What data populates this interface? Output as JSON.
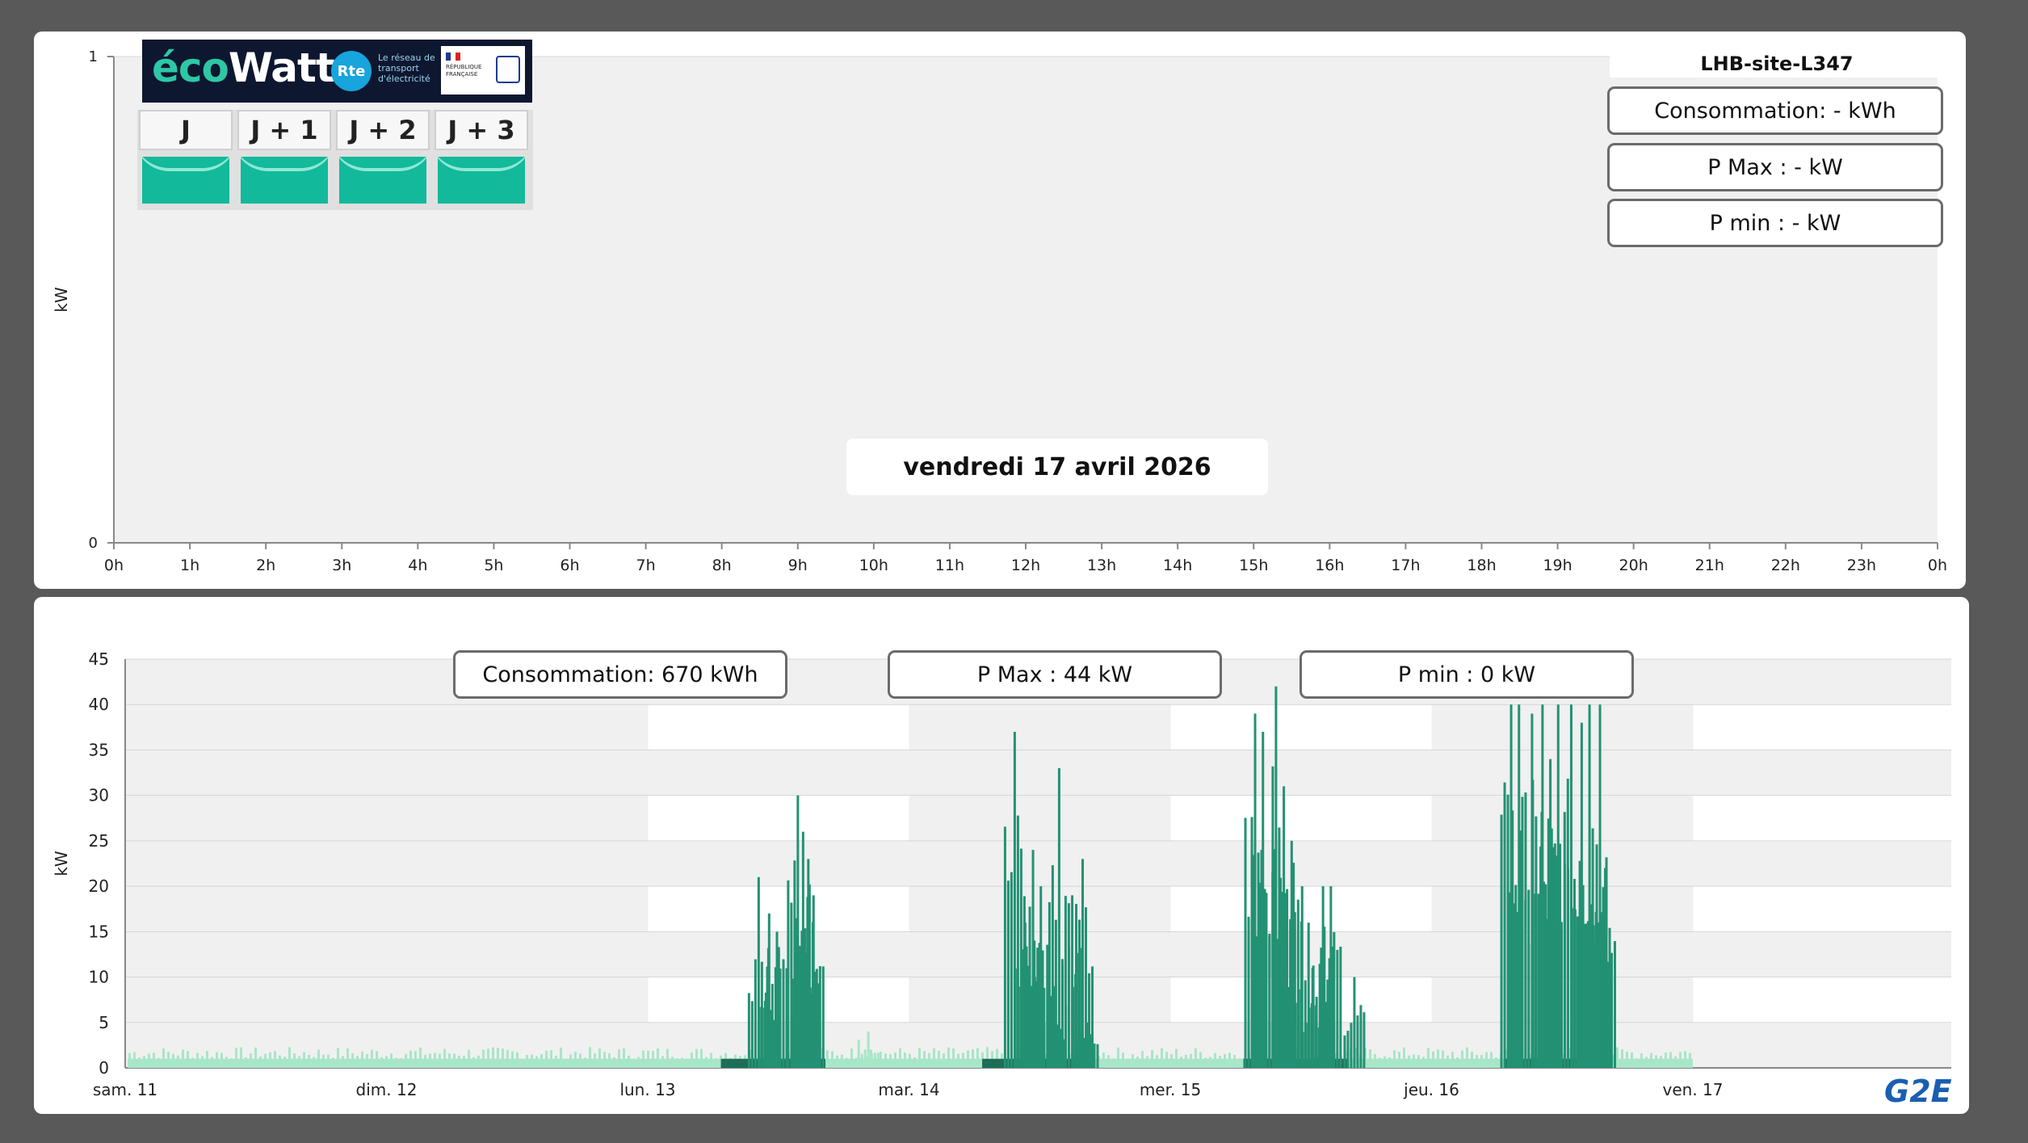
{
  "top_panel": {
    "site_name": "LHB-site-L347",
    "date_label": "vendredi 17 avril 2026",
    "consommation": "Consommation: - kWh",
    "pmax": "P Max :  - kW",
    "pmin": "P min : - kW",
    "ecowatt": {
      "brand_prefix": "éco",
      "brand_suffix": "Watt",
      "rte_label": "Rte",
      "rte_text": "Le réseau de transport d'électricité",
      "gov_text": "RÉPUBLIQUE FRANÇAISE",
      "days": [
        {
          "label": "J",
          "signal": "green",
          "signal_color": "#12b99a"
        },
        {
          "label": "J + 1",
          "signal": "green",
          "signal_color": "#12b99a"
        },
        {
          "label": "J + 2",
          "signal": "green",
          "signal_color": "#12b99a"
        },
        {
          "label": "J + 3",
          "signal": "green",
          "signal_color": "#12b99a"
        }
      ]
    }
  },
  "bottom_panel": {
    "consommation": "Consommation: 670 kWh",
    "pmax": "P Max :  44 kW",
    "pmin": "P min : 0 kW",
    "logo": "G2E"
  },
  "chart_data": [
    {
      "type": "bar",
      "title": "",
      "ylabel": "kW",
      "xlabel": "",
      "ylim": [
        0,
        1
      ],
      "yticks": [
        "0",
        "1"
      ],
      "x_ticks": [
        "0h",
        "1h",
        "2h",
        "3h",
        "4h",
        "5h",
        "6h",
        "7h",
        "8h",
        "9h",
        "10h",
        "11h",
        "12h",
        "13h",
        "14h",
        "15h",
        "16h",
        "17h",
        "18h",
        "19h",
        "20h",
        "21h",
        "22h",
        "23h",
        "0h"
      ],
      "values": [],
      "background_color": "#f0f0f0"
    },
    {
      "type": "bar",
      "title": "",
      "ylabel": "kW",
      "xlabel": "",
      "ylim": [
        0,
        45
      ],
      "yticks": [
        "0",
        "5",
        "10",
        "15",
        "20",
        "25",
        "30",
        "35",
        "40",
        "45"
      ],
      "x_ticks": [
        "sam. 11",
        "dim. 12",
        "lun. 13",
        "mar. 14",
        "mer. 15",
        "jeu. 16",
        "ven. 17"
      ],
      "grid": true,
      "colors": {
        "low": "#a8e6c8",
        "high": "#239173",
        "dark_base": "#1d6e56"
      },
      "series": [
        {
          "name": "",
          "values": [
            {
              "day": 0,
              "peaks": []
            },
            {
              "day": 1,
              "peaks": []
            },
            {
              "day": 2,
              "peaks": [
                [
                  0.42,
                  21
                ],
                [
                  0.46,
                  17
                ],
                [
                  0.49,
                  15
                ],
                [
                  0.57,
                  30
                ],
                [
                  0.59,
                  26
                ],
                [
                  0.61,
                  23
                ],
                [
                  0.63,
                  19
                ],
                [
                  0.84,
                  4
                ],
                [
                  0.85,
                  2
                ]
              ]
            },
            {
              "day": 3,
              "peaks": [
                [
                  0.4,
                  37
                ],
                [
                  0.44,
                  16
                ],
                [
                  0.47,
                  24
                ],
                [
                  0.5,
                  20
                ],
                [
                  0.55,
                  9
                ],
                [
                  0.57,
                  33
                ],
                [
                  0.62,
                  19
                ],
                [
                  0.66,
                  23
                ],
                [
                  0.68,
                  5
                ]
              ]
            },
            {
              "day": 4,
              "peaks": [
                [
                  0.32,
                  39
                ],
                [
                  0.35,
                  37
                ],
                [
                  0.4,
                  42
                ],
                [
                  0.43,
                  31
                ],
                [
                  0.46,
                  25
                ],
                [
                  0.5,
                  20
                ],
                [
                  0.54,
                  11
                ],
                [
                  0.58,
                  20
                ],
                [
                  0.61,
                  20
                ],
                [
                  0.7,
                  10
                ]
              ]
            },
            {
              "day": 5,
              "peaks": [
                [
                  0.3,
                  40
                ],
                [
                  0.33,
                  40
                ],
                [
                  0.38,
                  39
                ],
                [
                  0.42,
                  40
                ],
                [
                  0.45,
                  34
                ],
                [
                  0.48,
                  40
                ],
                [
                  0.53,
                  40
                ],
                [
                  0.57,
                  38
                ],
                [
                  0.6,
                  40
                ],
                [
                  0.64,
                  40
                ],
                [
                  0.66,
                  22
                ]
              ]
            }
          ]
        }
      ]
    }
  ]
}
